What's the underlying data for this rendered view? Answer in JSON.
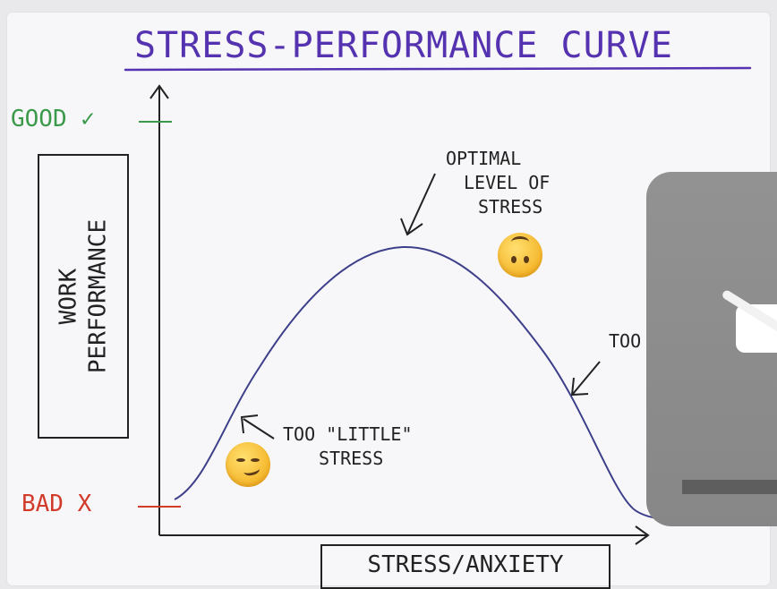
{
  "title": "STRESS-PERFORMANCE CURVE",
  "y_axis": {
    "top_label": "GOOD ✓",
    "bottom_label": "BAD X",
    "title_line1": "WORK",
    "title_line2": "PERFORMANCE"
  },
  "x_axis": {
    "title": "STRESS/ANXIETY"
  },
  "annotations": {
    "optimal_line1": "OPTIMAL",
    "optimal_line2": "LEVEL OF",
    "optimal_line3": "STRESS",
    "little_line1": "TOO \"LITTLE\"",
    "little_line2": "STRESS",
    "much_partial": "TOO"
  },
  "colors": {
    "title": "#5533b0",
    "curve": "#3d3f8a",
    "good": "#3a9a4a",
    "bad": "#d23a2a",
    "emoji": "#f5b62b",
    "overlay": "#8d8d8d"
  },
  "icons": {
    "smirk_emoji": "smirking-face",
    "upside_down_emoji": "upside-down-face",
    "video_overlay": "muted-video-icon"
  }
}
